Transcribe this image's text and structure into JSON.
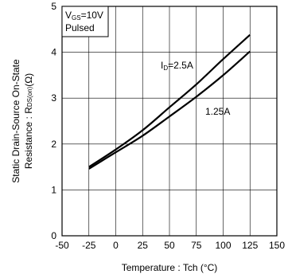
{
  "chart_data": {
    "type": "line",
    "xlabel": "Temperature : Tch (°C)",
    "ylabel_line1": "Static Drain-Source On-State",
    "ylabel_line2_prefix": "Resistance : R",
    "ylabel_line2_sub": "DS(on)",
    "ylabel_line2_suffix": "(Ω)",
    "xlim": [
      -50,
      150
    ],
    "ylim": [
      0,
      5
    ],
    "xticks": [
      -50,
      -25,
      0,
      25,
      50,
      75,
      100,
      125,
      150
    ],
    "yticks": [
      0,
      1,
      2,
      3,
      4,
      5
    ],
    "xtick_labels": [
      "-50",
      "-25",
      "0",
      "25",
      "50",
      "75",
      "100",
      "125",
      "150"
    ],
    "ytick_labels": [
      "0",
      "1",
      "2",
      "3",
      "4",
      "5"
    ],
    "grid": true,
    "legend": {
      "line1_main": "V",
      "line1_sub": "GS",
      "line1_rest": "=10V",
      "line2": "Pulsed"
    },
    "series": [
      {
        "label_main": "I",
        "label_sub": "D",
        "label_rest": "=2.5A",
        "x": [
          -25,
          0,
          25,
          50,
          75,
          100,
          125
        ],
        "y": [
          1.5,
          1.88,
          2.3,
          2.8,
          3.3,
          3.85,
          4.38
        ]
      },
      {
        "label_main": "1.25A",
        "label_sub": "",
        "label_rest": "",
        "x": [
          -25,
          0,
          25,
          50,
          75,
          100,
          125
        ],
        "y": [
          1.46,
          1.82,
          2.18,
          2.6,
          3.03,
          3.5,
          4.02
        ]
      }
    ]
  }
}
